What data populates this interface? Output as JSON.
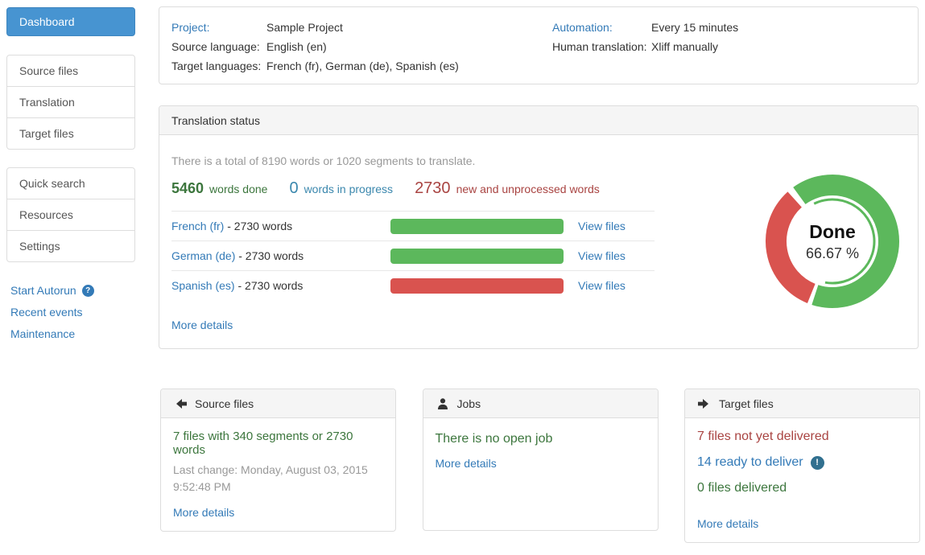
{
  "colors": {
    "primary": "#4794d1",
    "link": "#337ab7",
    "green": "#3c763d",
    "red": "#a94442",
    "info-blue": "#3a87ad",
    "bar-green": "#5cb85c",
    "bar-red": "#d9534f",
    "muted": "#999999",
    "text": "#333333",
    "panel-border": "#dddddd",
    "panel-header-bg": "#f5f5f5",
    "alert-bg": "#31708f"
  },
  "icons": {
    "help_glyph": "?",
    "alert_glyph": "!"
  },
  "sidebar": {
    "dashboard_label": "Dashboard",
    "nav_groups": [
      {
        "items": [
          {
            "label": "Source files"
          },
          {
            "label": "Translation"
          },
          {
            "label": "Target files"
          }
        ]
      },
      {
        "items": [
          {
            "label": "Quick search"
          },
          {
            "label": "Resources"
          },
          {
            "label": "Settings"
          }
        ]
      }
    ],
    "links": [
      {
        "label": "Start Autorun"
      },
      {
        "label": "Recent events"
      },
      {
        "label": "Maintenance"
      }
    ]
  },
  "project_panel": {
    "left_rows": [
      {
        "label": "Project:",
        "value": "Sample Project"
      },
      {
        "label": "Source language:",
        "value": "English (en)"
      },
      {
        "label": "Target languages:",
        "value": "French (fr), German (de), Spanish (es)"
      }
    ],
    "right_rows": [
      {
        "label": "Automation:",
        "value": "Every 15 minutes"
      },
      {
        "label": "Human translation:",
        "value": "Xliff manually"
      }
    ]
  },
  "translation_status": {
    "title": "Translation status",
    "summary": "There is a total of 8190 words or 1020 segments to translate.",
    "stats": [
      {
        "value": "5460",
        "label": "words done"
      },
      {
        "value": "0",
        "label": "words in progress"
      },
      {
        "value": "2730",
        "label": "new and unprocessed words"
      }
    ],
    "languages": [
      {
        "name": "French (fr)",
        "suffix": " - 2730 words",
        "bar_color": "#5cb85c",
        "bar_pct": 100,
        "action": "View files"
      },
      {
        "name": "German (de)",
        "suffix": " - 2730 words",
        "bar_color": "#5cb85c",
        "bar_pct": 100,
        "action": "View files"
      },
      {
        "name": "Spanish (es)",
        "suffix": " - 2730 words",
        "bar_color": "#d9534f",
        "bar_pct": 100,
        "action": "View files"
      }
    ],
    "more_details": "More details",
    "chart_data": {
      "type": "pie",
      "center_label": "Done",
      "center_value": "66.67 %",
      "slices": [
        {
          "name": "done",
          "value": 66.67,
          "color": "#5cb85c"
        },
        {
          "name": "remaining",
          "value": 33.33,
          "color": "#d9534f"
        }
      ],
      "segments": [
        {
          "color": "#5cb85c",
          "start": 324,
          "end": 558,
          "r": 70,
          "w": 26
        },
        {
          "color": "#d9534f",
          "start": 202,
          "end": 318,
          "r": 70,
          "w": 26
        },
        {
          "color": "#5cb85c",
          "start": 334,
          "end": 550,
          "r": 52,
          "w": 3
        }
      ]
    }
  },
  "cards": {
    "source_files": {
      "title": "Source files",
      "line1": "7 files with 340 segments or 2730 words",
      "line2": "Last change: Monday, August 03, 2015 9:52:48 PM",
      "more": "More details"
    },
    "jobs": {
      "title": "Jobs",
      "line1": "There is no open job",
      "more": "More details"
    },
    "target_files": {
      "title": "Target files",
      "line1": "7 files not yet delivered",
      "line2": "14 ready to deliver",
      "line3": "0 files delivered",
      "more": "More details"
    }
  }
}
